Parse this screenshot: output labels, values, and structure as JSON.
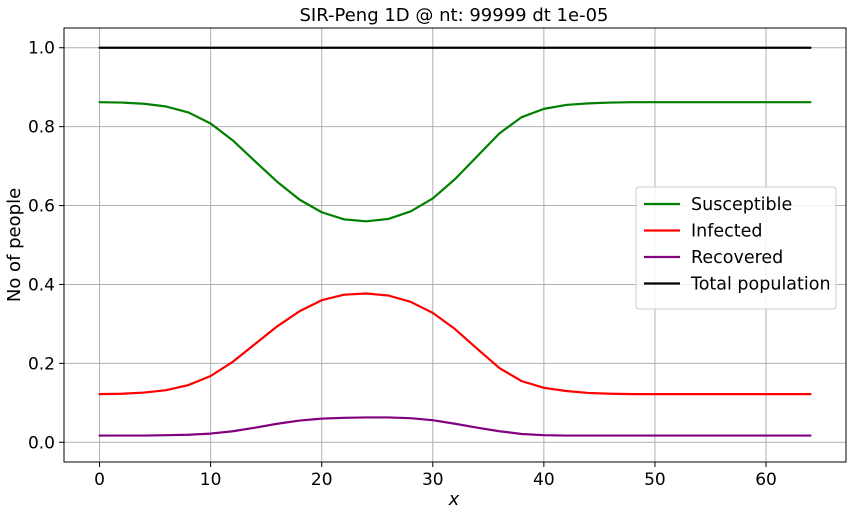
{
  "chart_data": {
    "type": "line",
    "title": "SIR-Peng 1D @ nt: 99999 dt 1e-05",
    "xlabel": "x",
    "ylabel": "No of people",
    "xlim": [
      -3.2,
      67.2
    ],
    "ylim": [
      -0.05,
      1.05
    ],
    "xticks": [
      0,
      10,
      20,
      30,
      40,
      50,
      60
    ],
    "yticks": [
      0.0,
      0.2,
      0.4,
      0.6,
      0.8,
      1.0
    ],
    "xtick_labels": [
      "0",
      "10",
      "20",
      "30",
      "40",
      "50",
      "60"
    ],
    "ytick_labels": [
      "0.0",
      "0.2",
      "0.4",
      "0.6",
      "0.8",
      "1.0"
    ],
    "grid": true,
    "legend_position": "center-right",
    "x": [
      0,
      2,
      4,
      6,
      8,
      10,
      12,
      14,
      16,
      18,
      20,
      22,
      24,
      26,
      28,
      30,
      32,
      34,
      36,
      38,
      40,
      42,
      44,
      46,
      48,
      50,
      52,
      54,
      56,
      58,
      60,
      62,
      64
    ],
    "series": [
      {
        "name": "Susceptible",
        "color": "#008000",
        "values": [
          0.862,
          0.861,
          0.858,
          0.851,
          0.836,
          0.808,
          0.765,
          0.712,
          0.66,
          0.615,
          0.583,
          0.565,
          0.56,
          0.566,
          0.585,
          0.618,
          0.667,
          0.725,
          0.783,
          0.824,
          0.845,
          0.855,
          0.859,
          0.861,
          0.862,
          0.862,
          0.862,
          0.862,
          0.862,
          0.862,
          0.862,
          0.862,
          0.862
        ]
      },
      {
        "name": "Infected",
        "color": "#ff0000",
        "values": [
          0.122,
          0.123,
          0.126,
          0.132,
          0.145,
          0.168,
          0.204,
          0.249,
          0.294,
          0.332,
          0.36,
          0.374,
          0.377,
          0.372,
          0.356,
          0.328,
          0.287,
          0.237,
          0.188,
          0.155,
          0.138,
          0.13,
          0.125,
          0.123,
          0.122,
          0.122,
          0.122,
          0.122,
          0.122,
          0.122,
          0.122,
          0.122,
          0.122
        ]
      },
      {
        "name": "Recovered",
        "color": "#800080",
        "values": [
          0.017,
          0.017,
          0.017,
          0.018,
          0.019,
          0.022,
          0.028,
          0.037,
          0.047,
          0.055,
          0.06,
          0.062,
          0.063,
          0.063,
          0.061,
          0.056,
          0.047,
          0.037,
          0.028,
          0.021,
          0.018,
          0.017,
          0.017,
          0.017,
          0.017,
          0.017,
          0.017,
          0.017,
          0.017,
          0.017,
          0.017,
          0.017,
          0.017
        ]
      },
      {
        "name": "Total population",
        "color": "#000000",
        "values": [
          1,
          1,
          1,
          1,
          1,
          1,
          1,
          1,
          1,
          1,
          1,
          1,
          1,
          1,
          1,
          1,
          1,
          1,
          1,
          1,
          1,
          1,
          1,
          1,
          1,
          1,
          1,
          1,
          1,
          1,
          1,
          1,
          1
        ]
      }
    ]
  }
}
